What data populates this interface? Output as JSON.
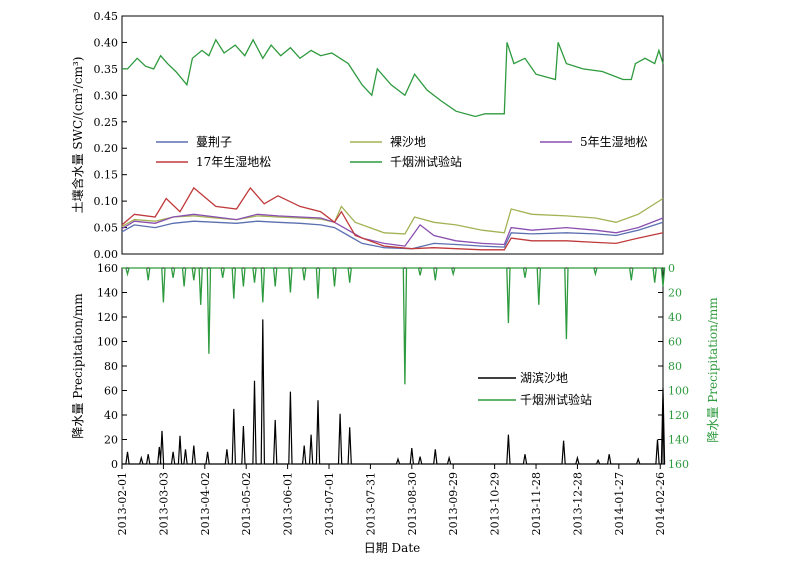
{
  "chart_data": [
    {
      "type": "line",
      "ylabel": "土壤含水量 SWC/(cm³/cm³)",
      "ylim": [
        0,
        0.45
      ],
      "yticks": [
        "0.00",
        "0.05",
        "0.10",
        "0.15",
        "0.20",
        "0.25",
        "0.30",
        "0.35",
        "0.40",
        "0.45"
      ],
      "x_range": [
        "2013-02-01",
        "2014-02-28"
      ],
      "series": [
        {
          "name": "蔓荆子",
          "color": "#5b6fb0",
          "points": [
            [
              "2013-02-01",
              0.042
            ],
            [
              "2013-02-10",
              0.055
            ],
            [
              "2013-02-25",
              0.05
            ],
            [
              "2013-03-10",
              0.058
            ],
            [
              "2013-03-25",
              0.062
            ],
            [
              "2013-04-10",
              0.06
            ],
            [
              "2013-04-25",
              0.058
            ],
            [
              "2013-05-10",
              0.062
            ],
            [
              "2013-05-25",
              0.06
            ],
            [
              "2013-06-10",
              0.058
            ],
            [
              "2013-06-25",
              0.055
            ],
            [
              "2013-07-05",
              0.05
            ],
            [
              "2013-07-15",
              0.035
            ],
            [
              "2013-07-25",
              0.02
            ],
            [
              "2013-08-10",
              0.012
            ],
            [
              "2013-08-30",
              0.01
            ],
            [
              "2013-09-15",
              0.02
            ],
            [
              "2013-10-01",
              0.018
            ],
            [
              "2013-10-20",
              0.015
            ],
            [
              "2013-11-05",
              0.013
            ],
            [
              "2013-11-10",
              0.04
            ],
            [
              "2013-11-25",
              0.038
            ],
            [
              "2013-12-20",
              0.04
            ],
            [
              "2014-01-10",
              0.038
            ],
            [
              "2014-01-25",
              0.035
            ],
            [
              "2014-02-10",
              0.045
            ],
            [
              "2014-02-28",
              0.06
            ]
          ]
        },
        {
          "name": "裸沙地",
          "color": "#a4b254",
          "points": [
            [
              "2013-02-01",
              0.052
            ],
            [
              "2013-02-10",
              0.065
            ],
            [
              "2013-02-25",
              0.062
            ],
            [
              "2013-03-10",
              0.07
            ],
            [
              "2013-03-25",
              0.072
            ],
            [
              "2013-04-10",
              0.068
            ],
            [
              "2013-04-25",
              0.065
            ],
            [
              "2013-05-10",
              0.072
            ],
            [
              "2013-05-25",
              0.07
            ],
            [
              "2013-06-10",
              0.068
            ],
            [
              "2013-06-25",
              0.066
            ],
            [
              "2013-07-05",
              0.06
            ],
            [
              "2013-07-10",
              0.09
            ],
            [
              "2013-07-20",
              0.06
            ],
            [
              "2013-08-10",
              0.04
            ],
            [
              "2013-08-25",
              0.038
            ],
            [
              "2013-09-01",
              0.07
            ],
            [
              "2013-09-15",
              0.06
            ],
            [
              "2013-10-01",
              0.055
            ],
            [
              "2013-10-20",
              0.045
            ],
            [
              "2013-11-05",
              0.04
            ],
            [
              "2013-11-10",
              0.085
            ],
            [
              "2013-11-25",
              0.075
            ],
            [
              "2013-12-20",
              0.072
            ],
            [
              "2014-01-10",
              0.068
            ],
            [
              "2014-01-25",
              0.06
            ],
            [
              "2014-02-10",
              0.075
            ],
            [
              "2014-02-28",
              0.105
            ]
          ]
        },
        {
          "name": "5年生湿地松",
          "color": "#8a4fb0",
          "points": [
            [
              "2013-02-01",
              0.048
            ],
            [
              "2013-02-10",
              0.062
            ],
            [
              "2013-02-25",
              0.058
            ],
            [
              "2013-03-10",
              0.07
            ],
            [
              "2013-03-25",
              0.075
            ],
            [
              "2013-04-10",
              0.07
            ],
            [
              "2013-04-25",
              0.065
            ],
            [
              "2013-05-10",
              0.075
            ],
            [
              "2013-05-25",
              0.072
            ],
            [
              "2013-06-10",
              0.07
            ],
            [
              "2013-06-25",
              0.068
            ],
            [
              "2013-07-05",
              0.06
            ],
            [
              "2013-07-15",
              0.045
            ],
            [
              "2013-07-25",
              0.03
            ],
            [
              "2013-08-10",
              0.02
            ],
            [
              "2013-08-25",
              0.015
            ],
            [
              "2013-09-05",
              0.055
            ],
            [
              "2013-09-15",
              0.035
            ],
            [
              "2013-10-01",
              0.025
            ],
            [
              "2013-10-20",
              0.02
            ],
            [
              "2013-11-05",
              0.018
            ],
            [
              "2013-11-10",
              0.05
            ],
            [
              "2013-11-25",
              0.045
            ],
            [
              "2013-12-20",
              0.05
            ],
            [
              "2014-01-10",
              0.045
            ],
            [
              "2014-01-25",
              0.04
            ],
            [
              "2014-02-10",
              0.05
            ],
            [
              "2014-02-28",
              0.068
            ]
          ]
        },
        {
          "name": "17年生湿地松",
          "color": "#c0393b",
          "points": [
            [
              "2013-02-01",
              0.055
            ],
            [
              "2013-02-10",
              0.075
            ],
            [
              "2013-02-25",
              0.07
            ],
            [
              "2013-03-05",
              0.105
            ],
            [
              "2013-03-15",
              0.08
            ],
            [
              "2013-03-25",
              0.125
            ],
            [
              "2013-04-10",
              0.09
            ],
            [
              "2013-04-25",
              0.085
            ],
            [
              "2013-05-05",
              0.125
            ],
            [
              "2013-05-15",
              0.095
            ],
            [
              "2013-05-25",
              0.11
            ],
            [
              "2013-06-10",
              0.09
            ],
            [
              "2013-06-25",
              0.08
            ],
            [
              "2013-07-05",
              0.06
            ],
            [
              "2013-07-10",
              0.08
            ],
            [
              "2013-07-20",
              0.035
            ],
            [
              "2013-08-10",
              0.015
            ],
            [
              "2013-08-30",
              0.01
            ],
            [
              "2013-09-15",
              0.012
            ],
            [
              "2013-10-01",
              0.01
            ],
            [
              "2013-10-20",
              0.008
            ],
            [
              "2013-11-05",
              0.008
            ],
            [
              "2013-11-10",
              0.03
            ],
            [
              "2013-11-25",
              0.025
            ],
            [
              "2013-12-20",
              0.025
            ],
            [
              "2014-01-10",
              0.022
            ],
            [
              "2014-01-25",
              0.02
            ],
            [
              "2014-02-10",
              0.03
            ],
            [
              "2014-02-28",
              0.04
            ]
          ]
        },
        {
          "name": "千烟洲试验站",
          "color": "#2e9a3e",
          "points": [
            [
              "2013-02-01",
              0.35
            ],
            [
              "2013-02-05",
              0.35
            ],
            [
              "2013-02-12",
              0.37
            ],
            [
              "2013-02-18",
              0.355
            ],
            [
              "2013-02-24",
              0.35
            ],
            [
              "2013-03-01",
              0.375
            ],
            [
              "2013-03-06",
              0.36
            ],
            [
              "2013-03-12",
              0.345
            ],
            [
              "2013-03-20",
              0.32
            ],
            [
              "2013-03-24",
              0.37
            ],
            [
              "2013-03-31",
              0.385
            ],
            [
              "2013-04-05",
              0.375
            ],
            [
              "2013-04-10",
              0.405
            ],
            [
              "2013-04-16",
              0.38
            ],
            [
              "2013-04-24",
              0.395
            ],
            [
              "2013-05-01",
              0.375
            ],
            [
              "2013-05-07",
              0.405
            ],
            [
              "2013-05-14",
              0.37
            ],
            [
              "2013-05-20",
              0.395
            ],
            [
              "2013-05-27",
              0.375
            ],
            [
              "2013-06-03",
              0.39
            ],
            [
              "2013-06-10",
              0.37
            ],
            [
              "2013-06-18",
              0.385
            ],
            [
              "2013-06-25",
              0.375
            ],
            [
              "2013-07-03",
              0.38
            ],
            [
              "2013-07-15",
              0.36
            ],
            [
              "2013-07-25",
              0.32
            ],
            [
              "2013-08-01",
              0.3
            ],
            [
              "2013-08-05",
              0.35
            ],
            [
              "2013-08-15",
              0.32
            ],
            [
              "2013-08-25",
              0.3
            ],
            [
              "2013-09-01",
              0.34
            ],
            [
              "2013-09-10",
              0.31
            ],
            [
              "2013-09-20",
              0.29
            ],
            [
              "2013-10-01",
              0.27
            ],
            [
              "2013-10-15",
              0.26
            ],
            [
              "2013-10-22",
              0.265
            ],
            [
              "2013-11-05",
              0.265
            ],
            [
              "2013-11-07",
              0.4
            ],
            [
              "2013-11-12",
              0.36
            ],
            [
              "2013-11-20",
              0.37
            ],
            [
              "2013-11-28",
              0.34
            ],
            [
              "2013-12-12",
              0.33
            ],
            [
              "2013-12-14",
              0.4
            ],
            [
              "2013-12-20",
              0.36
            ],
            [
              "2014-01-01",
              0.35
            ],
            [
              "2014-01-15",
              0.345
            ],
            [
              "2014-01-30",
              0.33
            ],
            [
              "2014-02-05",
              0.33
            ],
            [
              "2014-02-08",
              0.36
            ],
            [
              "2014-02-15",
              0.37
            ],
            [
              "2014-02-22",
              0.36
            ],
            [
              "2014-02-25",
              0.385
            ],
            [
              "2014-02-28",
              0.36
            ]
          ]
        }
      ]
    },
    {
      "type": "bar",
      "ylabel": "降水量 Precipitation/mm",
      "ylim": [
        0,
        160
      ],
      "yticks": [
        "0",
        "20",
        "40",
        "60",
        "80",
        "100",
        "120",
        "140",
        "160"
      ],
      "y2label": "降水量 Precipitation/mm",
      "y2lim": [
        0,
        160
      ],
      "y2ticks": [
        "0",
        "20",
        "40",
        "60",
        "80",
        "100",
        "120",
        "140",
        "160"
      ],
      "xlabel": "日期 Date",
      "x_ticks": [
        "2013-02-01",
        "2013-03-03",
        "2013-04-02",
        "2013-05-02",
        "2013-06-01",
        "2013-07-01",
        "2013-07-31",
        "2013-08-30",
        "2013-09-29",
        "2013-10-29",
        "2013-11-28",
        "2013-12-28",
        "2014-01-27",
        "2014-02-26"
      ],
      "series": [
        {
          "name": "湖滨沙地",
          "color": "#000000",
          "events": [
            [
              "2013-02-05",
              10
            ],
            [
              "2013-02-15",
              5
            ],
            [
              "2013-02-20",
              8
            ],
            [
              "2013-02-28",
              14
            ],
            [
              "2013-03-02",
              27
            ],
            [
              "2013-03-10",
              10
            ],
            [
              "2013-03-15",
              23
            ],
            [
              "2013-03-19",
              12
            ],
            [
              "2013-03-25",
              15
            ],
            [
              "2013-04-04",
              10
            ],
            [
              "2013-04-18",
              12
            ],
            [
              "2013-04-23",
              45
            ],
            [
              "2013-04-30",
              31
            ],
            [
              "2013-05-08",
              68
            ],
            [
              "2013-05-14",
              118
            ],
            [
              "2013-05-23",
              36
            ],
            [
              "2013-06-03",
              59
            ],
            [
              "2013-06-13",
              15
            ],
            [
              "2013-06-18",
              24
            ],
            [
              "2013-06-23",
              52
            ],
            [
              "2013-07-09",
              41
            ],
            [
              "2013-07-16",
              30
            ],
            [
              "2013-08-20",
              4
            ],
            [
              "2013-08-30",
              13
            ],
            [
              "2013-09-05",
              6
            ],
            [
              "2013-09-16",
              12
            ],
            [
              "2013-09-26",
              5
            ],
            [
              "2013-11-08",
              24
            ],
            [
              "2013-11-20",
              8
            ],
            [
              "2013-12-18",
              19
            ],
            [
              "2013-12-28",
              5
            ],
            [
              "2014-01-12",
              3
            ],
            [
              "2014-01-20",
              8
            ],
            [
              "2014-02-10",
              4
            ],
            [
              "2014-02-24",
              20
            ],
            [
              "2014-02-28",
              62
            ]
          ]
        },
        {
          "name": "千烟洲试验站",
          "color": "#2e9a3e",
          "axis": "right-inverted",
          "events": [
            [
              "2013-02-05",
              5
            ],
            [
              "2013-02-20",
              10
            ],
            [
              "2013-03-03",
              28
            ],
            [
              "2013-03-10",
              8
            ],
            [
              "2013-03-18",
              15
            ],
            [
              "2013-03-25",
              10
            ],
            [
              "2013-03-30",
              30
            ],
            [
              "2013-04-05",
              70
            ],
            [
              "2013-04-15",
              8
            ],
            [
              "2013-04-23",
              25
            ],
            [
              "2013-04-30",
              15
            ],
            [
              "2013-05-08",
              12
            ],
            [
              "2013-05-14",
              28
            ],
            [
              "2013-05-23",
              15
            ],
            [
              "2013-06-03",
              20
            ],
            [
              "2013-06-13",
              10
            ],
            [
              "2013-06-23",
              25
            ],
            [
              "2013-07-05",
              15
            ],
            [
              "2013-07-16",
              12
            ],
            [
              "2013-08-25",
              95
            ],
            [
              "2013-09-05",
              6
            ],
            [
              "2013-09-16",
              10
            ],
            [
              "2013-09-29",
              5
            ],
            [
              "2013-11-08",
              45
            ],
            [
              "2013-11-20",
              8
            ],
            [
              "2013-11-30",
              30
            ],
            [
              "2013-12-20",
              58
            ],
            [
              "2014-01-10",
              5
            ],
            [
              "2014-02-05",
              10
            ],
            [
              "2014-02-22",
              12
            ],
            [
              "2014-02-28",
              15
            ]
          ]
        }
      ]
    }
  ]
}
